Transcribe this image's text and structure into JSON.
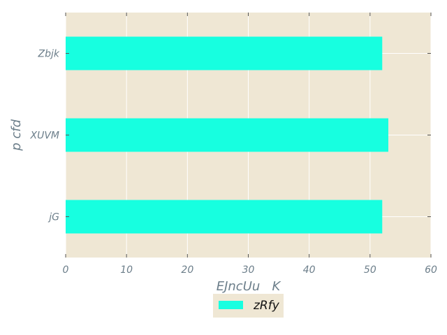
{
  "chart_data": {
    "type": "bar",
    "orientation": "horizontal",
    "categories": [
      "jG",
      "XUVM",
      "Zbjk"
    ],
    "series": [
      {
        "name": "zRfy",
        "values": [
          52,
          53,
          52
        ]
      }
    ],
    "title": "",
    "xlabel": "EJncUu   K",
    "ylabel": "p cfd",
    "xlim": [
      0,
      60
    ],
    "xticks": [
      "0",
      "10",
      "20",
      "30",
      "40",
      "50",
      "60"
    ],
    "grid": true,
    "legend_position": "bottom-center",
    "colors": {
      "bar": "#17ffe0",
      "plot_background": "#efe7d4",
      "grid": "#ffffff",
      "text": "#6c7e8a",
      "legend_background": "#efe7d4"
    }
  }
}
